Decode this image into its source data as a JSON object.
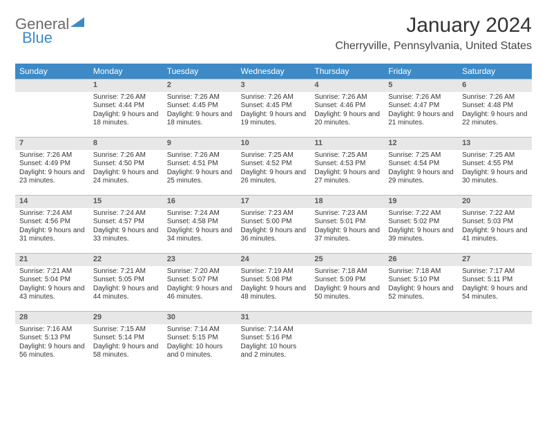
{
  "logo": {
    "general": "General",
    "blue": "Blue"
  },
  "header": {
    "title": "January 2024",
    "location": "Cherryville, Pennsylvania, United States"
  },
  "colors": {
    "header_bg": "#3d8ac7",
    "daynum_bg": "#e7e7e7",
    "text": "#333333"
  },
  "days_of_week": [
    "Sunday",
    "Monday",
    "Tuesday",
    "Wednesday",
    "Thursday",
    "Friday",
    "Saturday"
  ],
  "weeks": [
    [
      null,
      {
        "num": "1",
        "sunrise": "Sunrise: 7:26 AM",
        "sunset": "Sunset: 4:44 PM",
        "daylight": "Daylight: 9 hours and 18 minutes."
      },
      {
        "num": "2",
        "sunrise": "Sunrise: 7:26 AM",
        "sunset": "Sunset: 4:45 PM",
        "daylight": "Daylight: 9 hours and 18 minutes."
      },
      {
        "num": "3",
        "sunrise": "Sunrise: 7:26 AM",
        "sunset": "Sunset: 4:45 PM",
        "daylight": "Daylight: 9 hours and 19 minutes."
      },
      {
        "num": "4",
        "sunrise": "Sunrise: 7:26 AM",
        "sunset": "Sunset: 4:46 PM",
        "daylight": "Daylight: 9 hours and 20 minutes."
      },
      {
        "num": "5",
        "sunrise": "Sunrise: 7:26 AM",
        "sunset": "Sunset: 4:47 PM",
        "daylight": "Daylight: 9 hours and 21 minutes."
      },
      {
        "num": "6",
        "sunrise": "Sunrise: 7:26 AM",
        "sunset": "Sunset: 4:48 PM",
        "daylight": "Daylight: 9 hours and 22 minutes."
      }
    ],
    [
      {
        "num": "7",
        "sunrise": "Sunrise: 7:26 AM",
        "sunset": "Sunset: 4:49 PM",
        "daylight": "Daylight: 9 hours and 23 minutes."
      },
      {
        "num": "8",
        "sunrise": "Sunrise: 7:26 AM",
        "sunset": "Sunset: 4:50 PM",
        "daylight": "Daylight: 9 hours and 24 minutes."
      },
      {
        "num": "9",
        "sunrise": "Sunrise: 7:26 AM",
        "sunset": "Sunset: 4:51 PM",
        "daylight": "Daylight: 9 hours and 25 minutes."
      },
      {
        "num": "10",
        "sunrise": "Sunrise: 7:25 AM",
        "sunset": "Sunset: 4:52 PM",
        "daylight": "Daylight: 9 hours and 26 minutes."
      },
      {
        "num": "11",
        "sunrise": "Sunrise: 7:25 AM",
        "sunset": "Sunset: 4:53 PM",
        "daylight": "Daylight: 9 hours and 27 minutes."
      },
      {
        "num": "12",
        "sunrise": "Sunrise: 7:25 AM",
        "sunset": "Sunset: 4:54 PM",
        "daylight": "Daylight: 9 hours and 29 minutes."
      },
      {
        "num": "13",
        "sunrise": "Sunrise: 7:25 AM",
        "sunset": "Sunset: 4:55 PM",
        "daylight": "Daylight: 9 hours and 30 minutes."
      }
    ],
    [
      {
        "num": "14",
        "sunrise": "Sunrise: 7:24 AM",
        "sunset": "Sunset: 4:56 PM",
        "daylight": "Daylight: 9 hours and 31 minutes."
      },
      {
        "num": "15",
        "sunrise": "Sunrise: 7:24 AM",
        "sunset": "Sunset: 4:57 PM",
        "daylight": "Daylight: 9 hours and 33 minutes."
      },
      {
        "num": "16",
        "sunrise": "Sunrise: 7:24 AM",
        "sunset": "Sunset: 4:58 PM",
        "daylight": "Daylight: 9 hours and 34 minutes."
      },
      {
        "num": "17",
        "sunrise": "Sunrise: 7:23 AM",
        "sunset": "Sunset: 5:00 PM",
        "daylight": "Daylight: 9 hours and 36 minutes."
      },
      {
        "num": "18",
        "sunrise": "Sunrise: 7:23 AM",
        "sunset": "Sunset: 5:01 PM",
        "daylight": "Daylight: 9 hours and 37 minutes."
      },
      {
        "num": "19",
        "sunrise": "Sunrise: 7:22 AM",
        "sunset": "Sunset: 5:02 PM",
        "daylight": "Daylight: 9 hours and 39 minutes."
      },
      {
        "num": "20",
        "sunrise": "Sunrise: 7:22 AM",
        "sunset": "Sunset: 5:03 PM",
        "daylight": "Daylight: 9 hours and 41 minutes."
      }
    ],
    [
      {
        "num": "21",
        "sunrise": "Sunrise: 7:21 AM",
        "sunset": "Sunset: 5:04 PM",
        "daylight": "Daylight: 9 hours and 43 minutes."
      },
      {
        "num": "22",
        "sunrise": "Sunrise: 7:21 AM",
        "sunset": "Sunset: 5:05 PM",
        "daylight": "Daylight: 9 hours and 44 minutes."
      },
      {
        "num": "23",
        "sunrise": "Sunrise: 7:20 AM",
        "sunset": "Sunset: 5:07 PM",
        "daylight": "Daylight: 9 hours and 46 minutes."
      },
      {
        "num": "24",
        "sunrise": "Sunrise: 7:19 AM",
        "sunset": "Sunset: 5:08 PM",
        "daylight": "Daylight: 9 hours and 48 minutes."
      },
      {
        "num": "25",
        "sunrise": "Sunrise: 7:18 AM",
        "sunset": "Sunset: 5:09 PM",
        "daylight": "Daylight: 9 hours and 50 minutes."
      },
      {
        "num": "26",
        "sunrise": "Sunrise: 7:18 AM",
        "sunset": "Sunset: 5:10 PM",
        "daylight": "Daylight: 9 hours and 52 minutes."
      },
      {
        "num": "27",
        "sunrise": "Sunrise: 7:17 AM",
        "sunset": "Sunset: 5:11 PM",
        "daylight": "Daylight: 9 hours and 54 minutes."
      }
    ],
    [
      {
        "num": "28",
        "sunrise": "Sunrise: 7:16 AM",
        "sunset": "Sunset: 5:13 PM",
        "daylight": "Daylight: 9 hours and 56 minutes."
      },
      {
        "num": "29",
        "sunrise": "Sunrise: 7:15 AM",
        "sunset": "Sunset: 5:14 PM",
        "daylight": "Daylight: 9 hours and 58 minutes."
      },
      {
        "num": "30",
        "sunrise": "Sunrise: 7:14 AM",
        "sunset": "Sunset: 5:15 PM",
        "daylight": "Daylight: 10 hours and 0 minutes."
      },
      {
        "num": "31",
        "sunrise": "Sunrise: 7:14 AM",
        "sunset": "Sunset: 5:16 PM",
        "daylight": "Daylight: 10 hours and 2 minutes."
      },
      null,
      null,
      null
    ]
  ]
}
